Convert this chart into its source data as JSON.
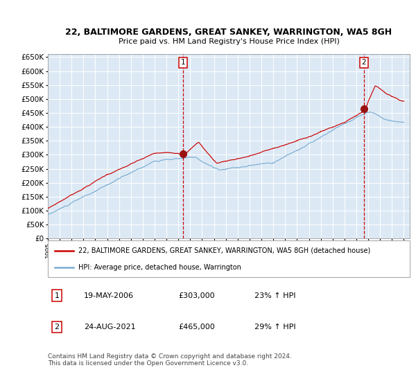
{
  "title": "22, BALTIMORE GARDENS, GREAT SANKEY, WARRINGTON, WA5 8GH",
  "subtitle": "Price paid vs. HM Land Registry's House Price Index (HPI)",
  "sale1_date": "19-MAY-2006",
  "sale1_price": 303000,
  "sale1_label": "1",
  "sale1_year": 2006.38,
  "sale2_date": "24-AUG-2021",
  "sale2_price": 465000,
  "sale2_label": "2",
  "sale2_year": 2021.64,
  "legend_line1": "22, BALTIMORE GARDENS, GREAT SANKEY, WARRINGTON, WA5 8GH (detached house)",
  "legend_line2": "HPI: Average price, detached house, Warrington",
  "table_row1": [
    "1",
    "19-MAY-2006",
    "£303,000",
    "23% ↑ HPI"
  ],
  "table_row2": [
    "2",
    "24-AUG-2021",
    "£465,000",
    "29% ↑ HPI"
  ],
  "footnote": "Contains HM Land Registry data © Crown copyright and database right 2024.\nThis data is licensed under the Open Government Licence v3.0.",
  "hpi_color": "#7aadd4",
  "price_color": "#cc0000",
  "marker_color": "#991111",
  "vline_color": "#cc0000",
  "plot_bg": "#dce9f5",
  "grid_color": "#ffffff",
  "ylim": [
    0,
    660000
  ],
  "yticks": [
    0,
    50000,
    100000,
    150000,
    200000,
    250000,
    300000,
    350000,
    400000,
    450000,
    500000,
    550000,
    600000,
    650000
  ],
  "start_year": 1995,
  "end_year": 2025
}
